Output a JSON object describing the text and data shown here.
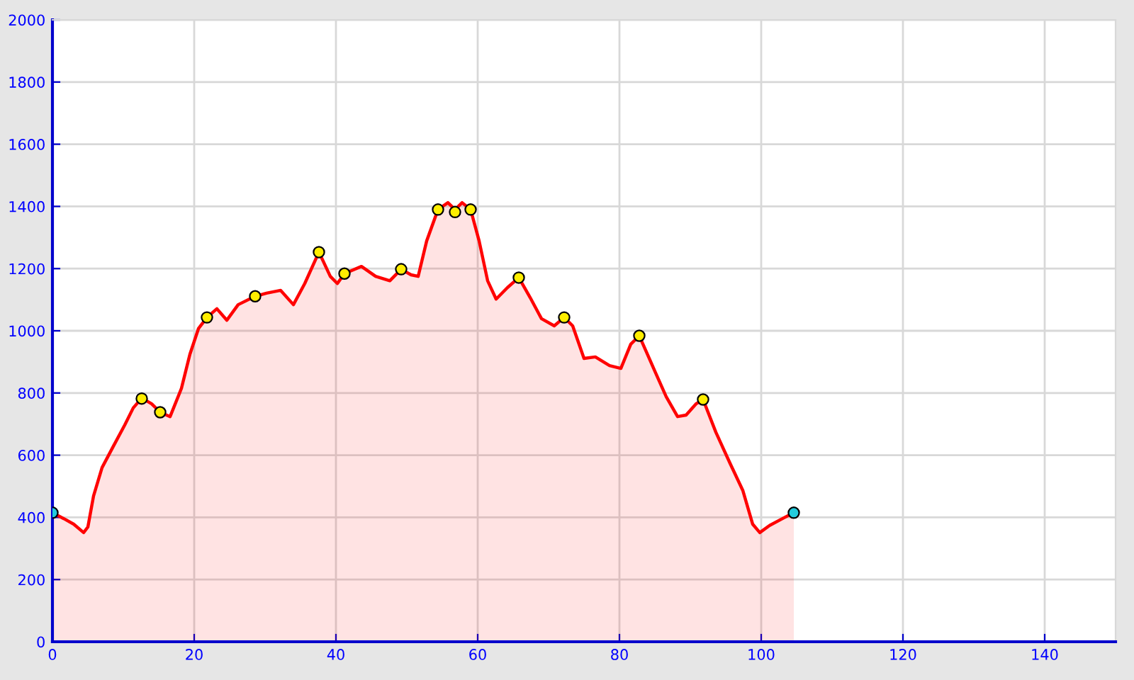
{
  "chart_data": {
    "type": "area",
    "xlim": [
      0,
      150
    ],
    "ylim": [
      0,
      2000
    ],
    "xticks": [
      0,
      20,
      40,
      60,
      80,
      100,
      120,
      140
    ],
    "yticks": [
      0,
      200,
      400,
      600,
      800,
      1000,
      1200,
      1400,
      1600,
      1800,
      2000
    ],
    "grid": true,
    "series": [
      {
        "color": "#ff0000",
        "x": [
          0,
          1.6,
          3,
          4.4,
          5,
          5.8,
          7,
          8.6,
          10.2,
          11.4,
          12.6,
          14,
          15.2,
          16.6,
          18.2,
          19.4,
          20.6,
          21.8,
          23.2,
          24.6,
          26.2,
          28.6,
          30.2,
          32.2,
          34,
          35.6,
          37.6,
          39.2,
          40.2,
          41.2,
          43.6,
          45.6,
          47.6,
          49.2,
          50.6,
          51.6,
          52.8,
          54.4,
          55.8,
          56.8,
          57.8,
          59,
          60.2,
          61.4,
          62.6,
          64.2,
          65.8,
          67.4,
          69,
          70.8,
          72.2,
          73.4,
          75,
          76.6,
          78.6,
          80.2,
          81.6,
          82.8,
          85,
          86.6,
          88.2,
          89.4,
          90.8,
          91.8,
          93.6,
          95.6,
          97.4,
          98.8,
          99.8,
          101.2,
          103,
          104.6
        ],
        "values": [
          415,
          396,
          378,
          351,
          369,
          469,
          560,
          629,
          697,
          752,
          784,
          765,
          738,
          724,
          815,
          925,
          1007,
          1043,
          1071,
          1034,
          1084,
          1111,
          1121,
          1130,
          1084,
          1152,
          1253,
          1175,
          1152,
          1184,
          1207,
          1175,
          1161,
          1198,
          1180,
          1175,
          1289,
          1390,
          1412,
          1390,
          1412,
          1390,
          1289,
          1161,
          1102,
          1139,
          1171,
          1107,
          1039,
          1016,
          1043,
          1016,
          911,
          916,
          888,
          879,
          957,
          984,
          870,
          788,
          724,
          729,
          765,
          779,
          674,
          574,
          487,
          378,
          351,
          374,
          396,
          415
        ]
      },
      {
        "type": "scatter",
        "marker": "circle",
        "x": [
          0,
          12.6,
          15.2,
          21.8,
          28.6,
          37.6,
          41.2,
          49.2,
          54.4,
          56.8,
          59,
          65.8,
          72.2,
          82.8,
          91.8,
          104.6
        ],
        "values": [
          415,
          782,
          738,
          1043,
          1111,
          1253,
          1184,
          1198,
          1390,
          1382,
          1390,
          1171,
          1043,
          984,
          779,
          415
        ],
        "colors": [
          "#22ccdd",
          "#ffee00",
          "#ffee00",
          "#ffee00",
          "#ffee00",
          "#ffee00",
          "#ffee00",
          "#ffee00",
          "#ffee00",
          "#ffee00",
          "#ffee00",
          "#ffee00",
          "#ffee00",
          "#ffee00",
          "#ffee00",
          "#22ccdd"
        ]
      }
    ]
  }
}
